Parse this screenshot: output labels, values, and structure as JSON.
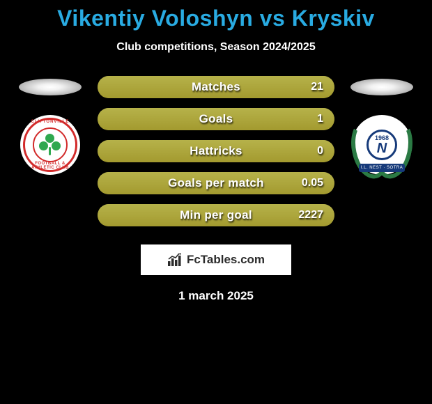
{
  "colors": {
    "background": "#000000",
    "accent": "#29abe2",
    "bar_bg": "#a39a2f",
    "bar_fill": "#b6b24a",
    "text_white": "#ffffff"
  },
  "header": {
    "title_prefix": "Vikentiy Voloshyn",
    "title_conj": " vs ",
    "title_suffix": "Kryskiv",
    "subtitle": "Club competitions, Season 2024/2025"
  },
  "left_badge": {
    "top_text": "CLIFTONVILLE",
    "bottom_text": "FOOTBALL & ATHLETIC CLUB"
  },
  "right_badge": {
    "year": "1968",
    "letter": "N",
    "ribbon": "I.L. NEST · SOTRA"
  },
  "stats": [
    {
      "label": "Matches",
      "right_value": "21",
      "fill_pct": 100
    },
    {
      "label": "Goals",
      "right_value": "1",
      "fill_pct": 100
    },
    {
      "label": "Hattricks",
      "right_value": "0",
      "fill_pct": 100
    },
    {
      "label": "Goals per match",
      "right_value": "0.05",
      "fill_pct": 100
    },
    {
      "label": "Min per goal",
      "right_value": "2227",
      "fill_pct": 100
    }
  ],
  "footer": {
    "brand": "FcTables.com",
    "date": "1 march 2025"
  }
}
